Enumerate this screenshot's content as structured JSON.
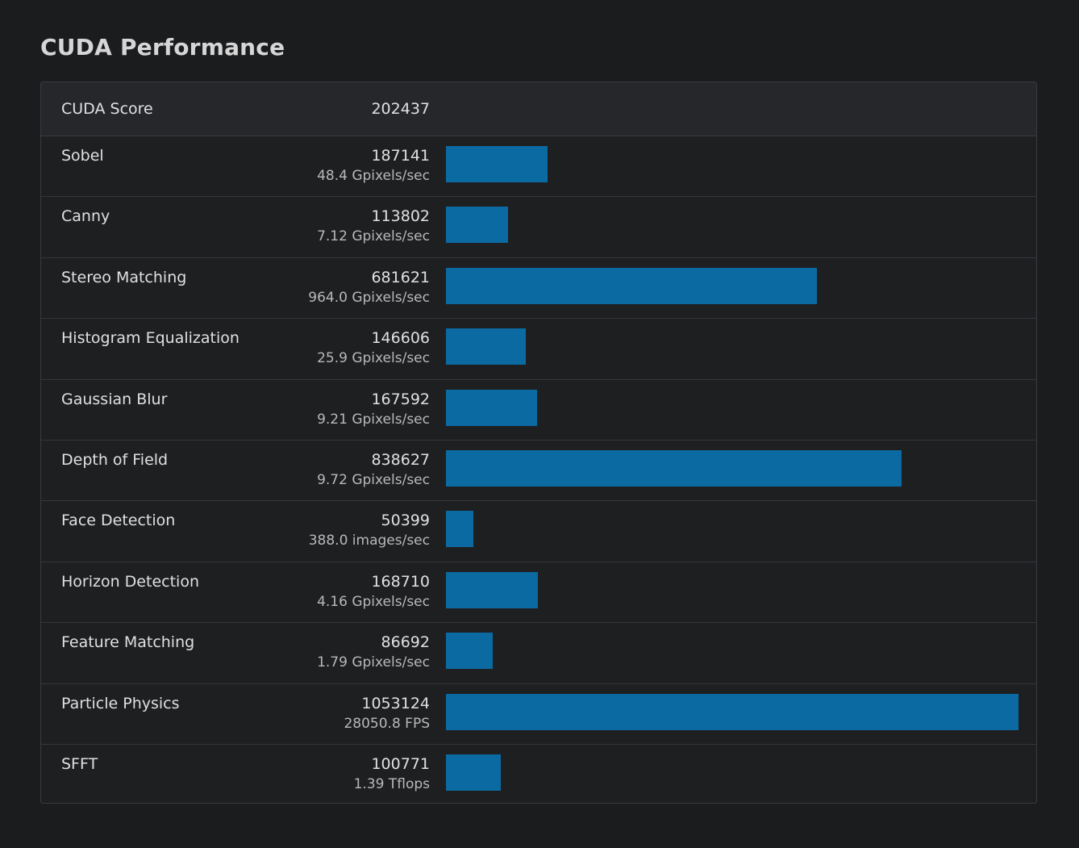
{
  "page": {
    "title": "CUDA Performance"
  },
  "summary": {
    "label": "CUDA Score",
    "value": "202437"
  },
  "colors": {
    "bar": "#0b6aa2",
    "background": "#1b1c1e",
    "panel": "#1e1f21",
    "header_row": "#25272a"
  },
  "chart_data": {
    "type": "bar",
    "orientation": "horizontal",
    "title": "CUDA Performance",
    "categories": [
      "Sobel",
      "Canny",
      "Stereo Matching",
      "Histogram Equalization",
      "Gaussian Blur",
      "Depth of Field",
      "Face Detection",
      "Horizon Detection",
      "Feature Matching",
      "Particle Physics",
      "SFFT"
    ],
    "values": [
      187141,
      113802,
      681621,
      146606,
      167592,
      838627,
      50399,
      168710,
      86692,
      1053124,
      100771
    ],
    "rows": [
      {
        "name": "Sobel",
        "score": "187141",
        "rate": "48.4 Gpixels/sec"
      },
      {
        "name": "Canny",
        "score": "113802",
        "rate": "7.12 Gpixels/sec"
      },
      {
        "name": "Stereo Matching",
        "score": "681621",
        "rate": "964.0 Gpixels/sec"
      },
      {
        "name": "Histogram Equalization",
        "score": "146606",
        "rate": "25.9 Gpixels/sec"
      },
      {
        "name": "Gaussian Blur",
        "score": "167592",
        "rate": "9.21 Gpixels/sec"
      },
      {
        "name": "Depth of Field",
        "score": "838627",
        "rate": "9.72 Gpixels/sec"
      },
      {
        "name": "Face Detection",
        "score": "50399",
        "rate": "388.0 images/sec"
      },
      {
        "name": "Horizon Detection",
        "score": "168710",
        "rate": "4.16 Gpixels/sec"
      },
      {
        "name": "Feature Matching",
        "score": "86692",
        "rate": "1.79 Gpixels/sec"
      },
      {
        "name": "Particle Physics",
        "score": "1053124",
        "rate": "28050.8 FPS"
      },
      {
        "name": "SFFT",
        "score": "100771",
        "rate": "1.39 Tflops"
      }
    ],
    "xlim": [
      0,
      1053124
    ],
    "grid": false,
    "legend": "none"
  }
}
